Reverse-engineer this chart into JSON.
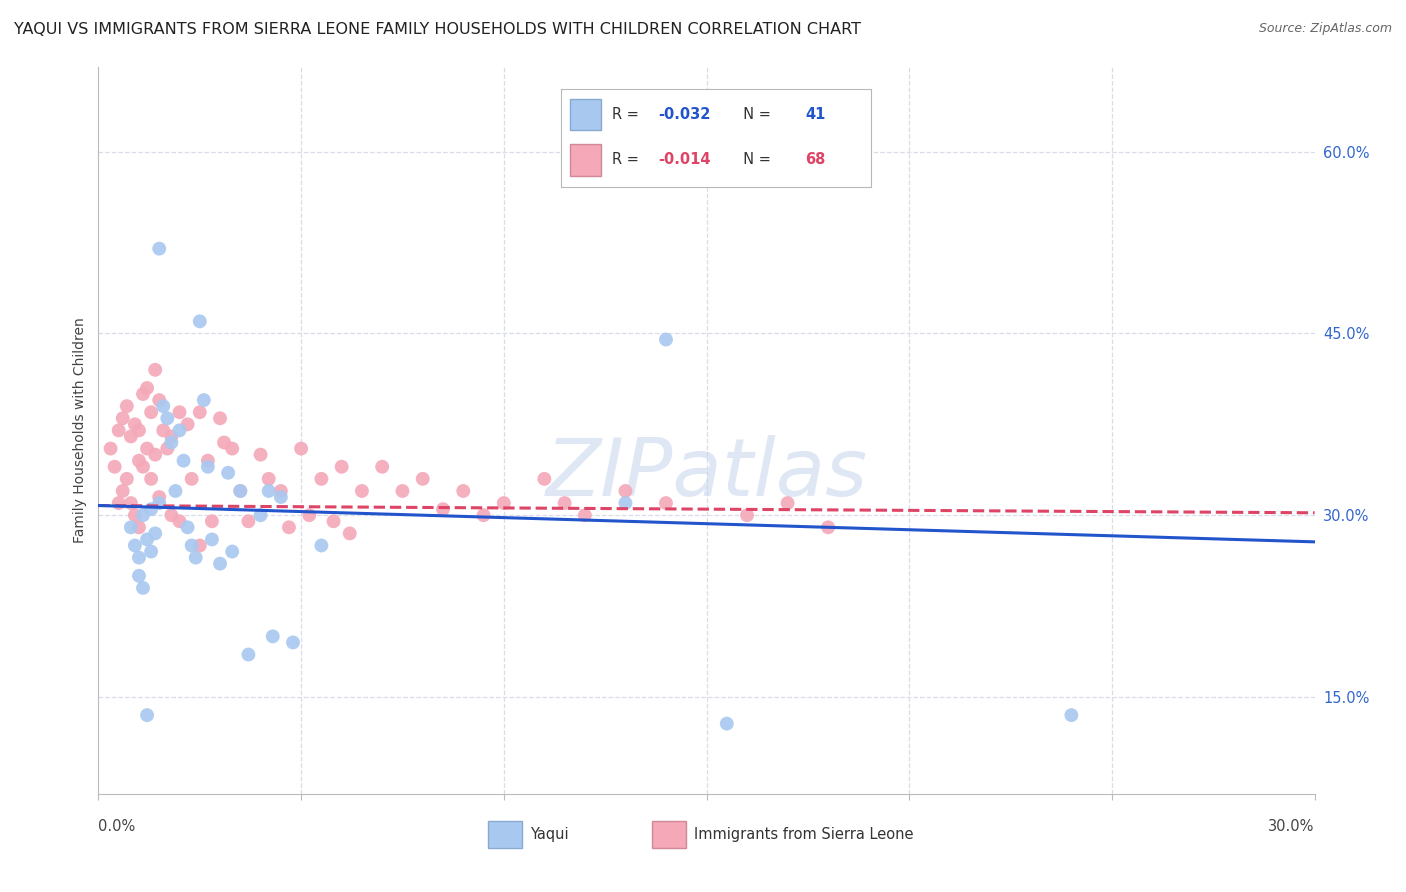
{
  "title": "YAQUI VS IMMIGRANTS FROM SIERRA LEONE FAMILY HOUSEHOLDS WITH CHILDREN CORRELATION CHART",
  "source": "Source: ZipAtlas.com",
  "ylabel": "Family Households with Children",
  "ytick_values": [
    0.15,
    0.3,
    0.45,
    0.6
  ],
  "xlim": [
    0.0,
    0.3
  ],
  "ylim": [
    0.07,
    0.67
  ],
  "yaqui_color": "#a8c8f0",
  "sierra_leone_color": "#f4a8b8",
  "trend_yaqui_color": "#2255cc",
  "trend_sierra_color": "#dd4466",
  "watermark": "ZIPatlas",
  "grid_color": "#d8dde8",
  "background_color": "#ffffff",
  "title_fontsize": 11.5,
  "axis_fontsize": 10,
  "tick_fontsize": 10.5,
  "dot_size": 100,
  "legend_r1": "-0.032",
  "legend_n1": "41",
  "legend_r2": "-0.014",
  "legend_n2": "68",
  "legend_r_color1": "#2255cc",
  "legend_r_color2": "#dd4466",
  "yaqui_x": [
    0.008,
    0.009,
    0.01,
    0.01,
    0.011,
    0.011,
    0.012,
    0.013,
    0.013,
    0.014,
    0.015,
    0.015,
    0.016,
    0.017,
    0.018,
    0.019,
    0.02,
    0.021,
    0.022,
    0.023,
    0.024,
    0.025,
    0.026,
    0.027,
    0.028,
    0.03,
    0.032,
    0.033,
    0.035,
    0.037,
    0.04,
    0.042,
    0.043,
    0.045,
    0.048,
    0.055,
    0.13,
    0.14,
    0.155,
    0.24,
    0.012
  ],
  "yaqui_y": [
    0.29,
    0.275,
    0.265,
    0.25,
    0.3,
    0.24,
    0.28,
    0.305,
    0.27,
    0.285,
    0.52,
    0.31,
    0.39,
    0.38,
    0.36,
    0.32,
    0.37,
    0.345,
    0.29,
    0.275,
    0.265,
    0.46,
    0.395,
    0.34,
    0.28,
    0.26,
    0.335,
    0.27,
    0.32,
    0.185,
    0.3,
    0.32,
    0.2,
    0.315,
    0.195,
    0.275,
    0.31,
    0.445,
    0.128,
    0.135,
    0.135
  ],
  "sierra_x": [
    0.003,
    0.004,
    0.005,
    0.005,
    0.006,
    0.006,
    0.007,
    0.007,
    0.008,
    0.008,
    0.009,
    0.009,
    0.01,
    0.01,
    0.01,
    0.011,
    0.011,
    0.012,
    0.012,
    0.013,
    0.013,
    0.014,
    0.014,
    0.015,
    0.015,
    0.016,
    0.017,
    0.018,
    0.018,
    0.02,
    0.02,
    0.022,
    0.023,
    0.025,
    0.025,
    0.027,
    0.028,
    0.03,
    0.031,
    0.033,
    0.035,
    0.037,
    0.04,
    0.042,
    0.045,
    0.047,
    0.05,
    0.052,
    0.055,
    0.058,
    0.06,
    0.062,
    0.065,
    0.07,
    0.075,
    0.08,
    0.085,
    0.09,
    0.095,
    0.1,
    0.11,
    0.115,
    0.12,
    0.13,
    0.14,
    0.16,
    0.17,
    0.18
  ],
  "sierra_y": [
    0.355,
    0.34,
    0.37,
    0.31,
    0.38,
    0.32,
    0.39,
    0.33,
    0.365,
    0.31,
    0.375,
    0.3,
    0.37,
    0.345,
    0.29,
    0.4,
    0.34,
    0.405,
    0.355,
    0.385,
    0.33,
    0.42,
    0.35,
    0.395,
    0.315,
    0.37,
    0.355,
    0.365,
    0.3,
    0.385,
    0.295,
    0.375,
    0.33,
    0.385,
    0.275,
    0.345,
    0.295,
    0.38,
    0.36,
    0.355,
    0.32,
    0.295,
    0.35,
    0.33,
    0.32,
    0.29,
    0.355,
    0.3,
    0.33,
    0.295,
    0.34,
    0.285,
    0.32,
    0.34,
    0.32,
    0.33,
    0.305,
    0.32,
    0.3,
    0.31,
    0.33,
    0.31,
    0.3,
    0.32,
    0.31,
    0.3,
    0.31,
    0.29
  ],
  "trend_yaqui_x0": 0.0,
  "trend_yaqui_y0": 0.308,
  "trend_yaqui_x1": 0.3,
  "trend_yaqui_y1": 0.278,
  "trend_sierra_x0": 0.0,
  "trend_sierra_y0": 0.308,
  "trend_sierra_x1": 0.3,
  "trend_sierra_y1": 0.302
}
